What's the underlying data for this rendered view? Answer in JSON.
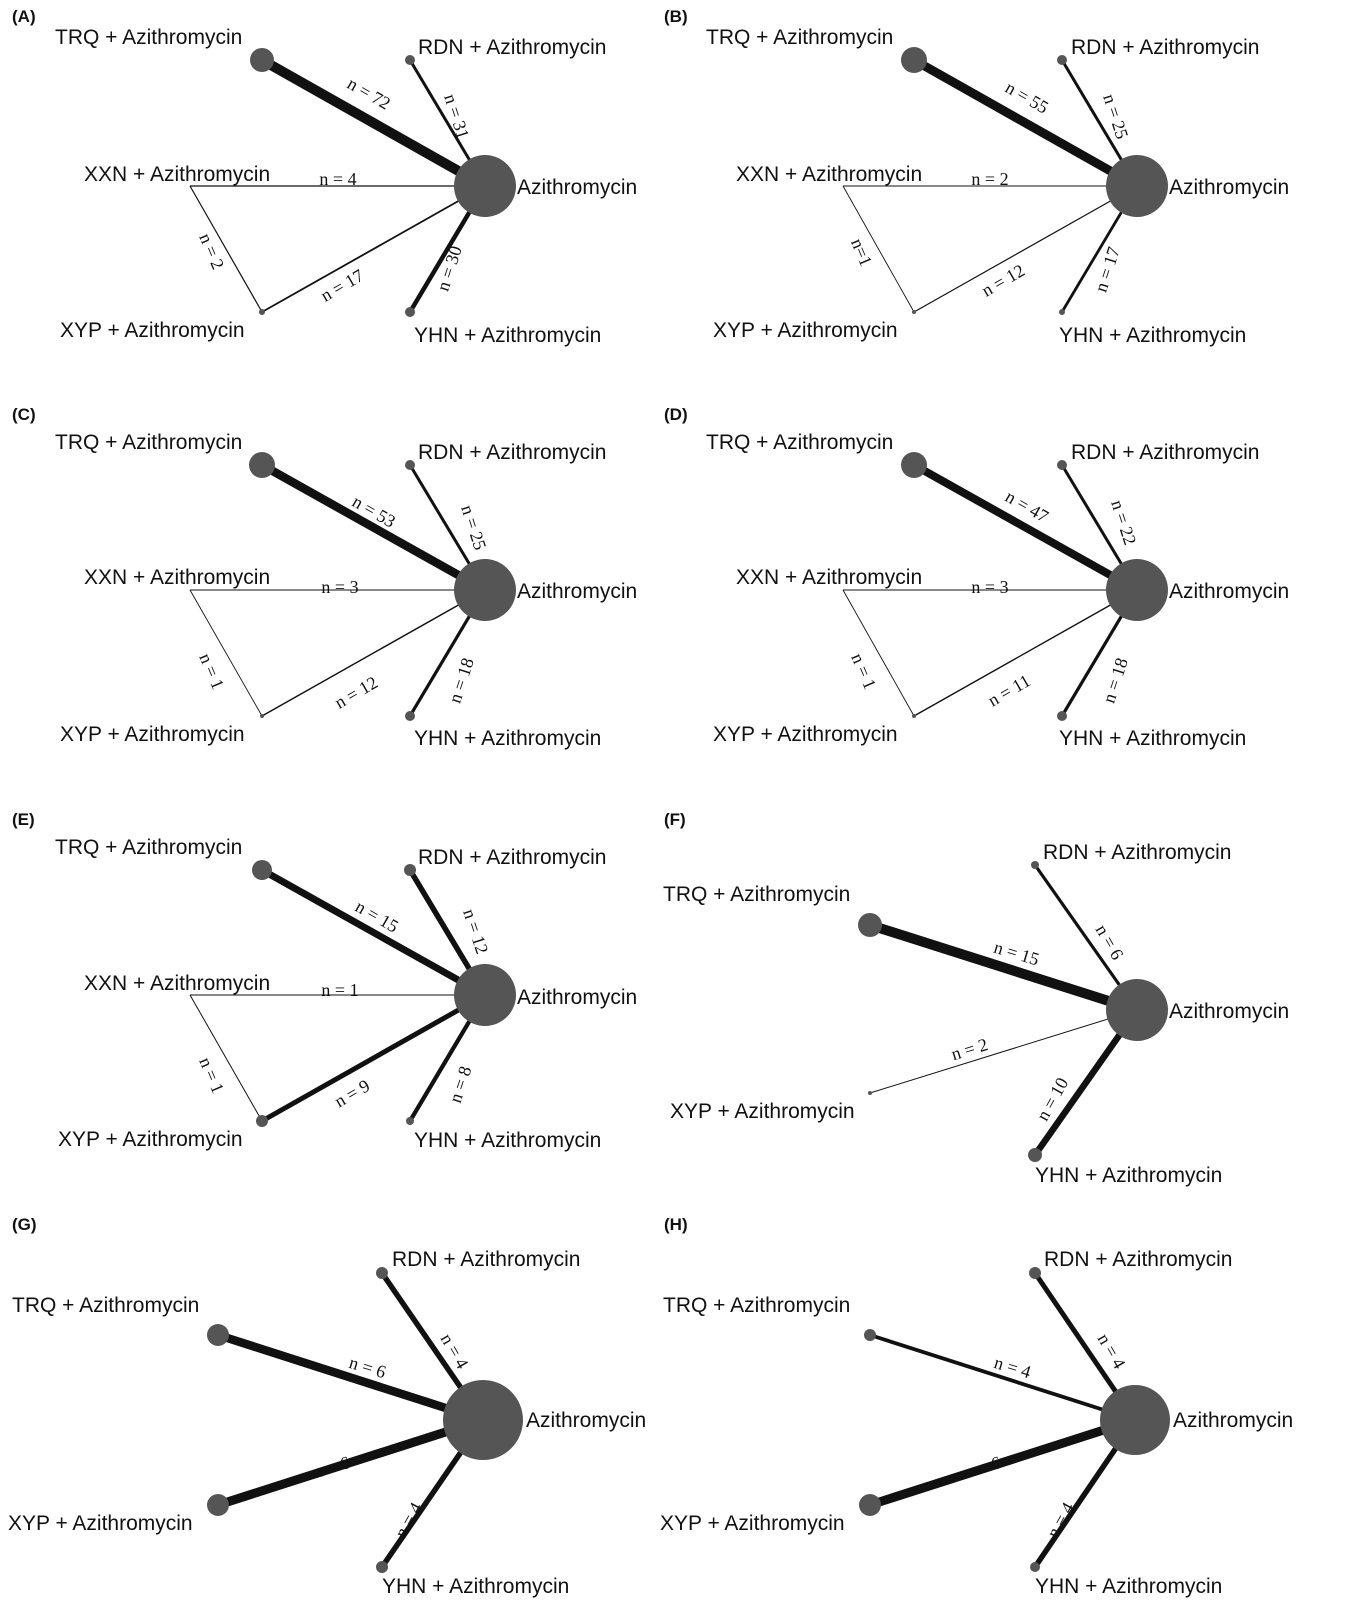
{
  "colors": {
    "node": "#555555",
    "edge": "#111111",
    "text": "#111111"
  },
  "panels": [
    {
      "letter": "(A)",
      "nodes": [
        {
          "id": "TRQ",
          "label": "TRQ + Azithromycin"
        },
        {
          "id": "RDN",
          "label": "RDN + Azithromycin"
        },
        {
          "id": "XXN",
          "label": "XXN + Azithromycin"
        },
        {
          "id": "AZI",
          "label": "Azithromycin"
        },
        {
          "id": "XYP",
          "label": "XYP + Azithromycin"
        },
        {
          "id": "YHN",
          "label": "YHN + Azithromycin"
        }
      ],
      "edges": [
        {
          "from": "TRQ",
          "to": "AZI",
          "label": "n = 72",
          "n": 72
        },
        {
          "from": "RDN",
          "to": "AZI",
          "label": "n = 31",
          "n": 31
        },
        {
          "from": "XXN",
          "to": "AZI",
          "label": "n = 4",
          "n": 4
        },
        {
          "from": "XXN",
          "to": "XYP",
          "label": "n = 2",
          "n": 2
        },
        {
          "from": "XYP",
          "to": "AZI",
          "label": "n = 17",
          "n": 17
        },
        {
          "from": "YHN",
          "to": "AZI",
          "label": "n = 30",
          "n": 30
        }
      ]
    },
    {
      "letter": "(B)",
      "nodes": [
        {
          "id": "TRQ",
          "label": "TRQ + Azithromycin"
        },
        {
          "id": "RDN",
          "label": "RDN + Azithromycin"
        },
        {
          "id": "XXN",
          "label": "XXN + Azithromycin"
        },
        {
          "id": "AZI",
          "label": "Azithromycin"
        },
        {
          "id": "XYP",
          "label": "XYP + Azithromycin"
        },
        {
          "id": "YHN",
          "label": "YHN + Azithromycin"
        }
      ],
      "edges": [
        {
          "from": "TRQ",
          "to": "AZI",
          "label": "n = 55",
          "n": 55
        },
        {
          "from": "RDN",
          "to": "AZI",
          "label": "n = 25",
          "n": 25
        },
        {
          "from": "XXN",
          "to": "AZI",
          "label": "n = 2",
          "n": 2
        },
        {
          "from": "XXN",
          "to": "XYP",
          "label": "n=1",
          "n": 1
        },
        {
          "from": "XYP",
          "to": "AZI",
          "label": "n = 12",
          "n": 12
        },
        {
          "from": "YHN",
          "to": "AZI",
          "label": "n = 17",
          "n": 17
        }
      ]
    },
    {
      "letter": "(C)",
      "nodes": [
        {
          "id": "TRQ",
          "label": "TRQ + Azithromycin"
        },
        {
          "id": "RDN",
          "label": "RDN + Azithromycin"
        },
        {
          "id": "XXN",
          "label": "XXN + Azithromycin"
        },
        {
          "id": "AZI",
          "label": "Azithromycin"
        },
        {
          "id": "XYP",
          "label": "XYP + Azithromycin"
        },
        {
          "id": "YHN",
          "label": "YHN + Azithromycin"
        }
      ],
      "edges": [
        {
          "from": "TRQ",
          "to": "AZI",
          "label": "n = 53",
          "n": 53
        },
        {
          "from": "RDN",
          "to": "AZI",
          "label": "n = 25",
          "n": 25
        },
        {
          "from": "XXN",
          "to": "AZI",
          "label": "n = 3",
          "n": 3
        },
        {
          "from": "XXN",
          "to": "XYP",
          "label": "n = 1",
          "n": 1
        },
        {
          "from": "XYP",
          "to": "AZI",
          "label": "n = 12",
          "n": 12
        },
        {
          "from": "YHN",
          "to": "AZI",
          "label": "n = 18",
          "n": 18
        }
      ]
    },
    {
      "letter": "(D)",
      "nodes": [
        {
          "id": "TRQ",
          "label": "TRQ + Azithromycin"
        },
        {
          "id": "RDN",
          "label": "RDN + Azithromycin"
        },
        {
          "id": "XXN",
          "label": "XXN + Azithromycin"
        },
        {
          "id": "AZI",
          "label": "Azithromycin"
        },
        {
          "id": "XYP",
          "label": "XYP + Azithromycin"
        },
        {
          "id": "YHN",
          "label": "YHN + Azithromycin"
        }
      ],
      "edges": [
        {
          "from": "TRQ",
          "to": "AZI",
          "label": "n = 47",
          "n": 47
        },
        {
          "from": "RDN",
          "to": "AZI",
          "label": "n = 22",
          "n": 22
        },
        {
          "from": "XXN",
          "to": "AZI",
          "label": "n = 3",
          "n": 3
        },
        {
          "from": "XXN",
          "to": "XYP",
          "label": "n = 1",
          "n": 1
        },
        {
          "from": "XYP",
          "to": "AZI",
          "label": "n = 11",
          "n": 11
        },
        {
          "from": "YHN",
          "to": "AZI",
          "label": "n = 18",
          "n": 18
        }
      ]
    },
    {
      "letter": "(E)",
      "nodes": [
        {
          "id": "TRQ",
          "label": "TRQ + Azithromycin"
        },
        {
          "id": "RDN",
          "label": "RDN + Azithromycin"
        },
        {
          "id": "XXN",
          "label": "XXN + Azithromycin"
        },
        {
          "id": "AZI",
          "label": "Azithromycin"
        },
        {
          "id": "XYP",
          "label": "XYP + Azithromycin"
        },
        {
          "id": "YHN",
          "label": "YHN + Azithromycin"
        }
      ],
      "edges": [
        {
          "from": "TRQ",
          "to": "AZI",
          "label": "n = 15",
          "n": 15
        },
        {
          "from": "RDN",
          "to": "AZI",
          "label": "n = 12",
          "n": 12
        },
        {
          "from": "XXN",
          "to": "AZI",
          "label": "n = 1",
          "n": 1
        },
        {
          "from": "XXN",
          "to": "XYP",
          "label": "n = 1",
          "n": 1
        },
        {
          "from": "XYP",
          "to": "AZI",
          "label": "n = 9",
          "n": 9
        },
        {
          "from": "YHN",
          "to": "AZI",
          "label": "n = 8",
          "n": 8
        }
      ]
    },
    {
      "letter": "(F)",
      "nodes": [
        {
          "id": "RDN",
          "label": "RDN + Azithromycin"
        },
        {
          "id": "TRQ",
          "label": "TRQ + Azithromycin"
        },
        {
          "id": "AZI",
          "label": "Azithromycin"
        },
        {
          "id": "XYP",
          "label": "XYP + Azithromycin"
        },
        {
          "id": "YHN",
          "label": "YHN + Azithromycin"
        }
      ],
      "edges": [
        {
          "from": "TRQ",
          "to": "AZI",
          "label": "n = 15",
          "n": 15
        },
        {
          "from": "RDN",
          "to": "AZI",
          "label": "n = 6",
          "n": 6
        },
        {
          "from": "XYP",
          "to": "AZI",
          "label": "n = 2",
          "n": 2
        },
        {
          "from": "YHN",
          "to": "AZI",
          "label": "n = 10",
          "n": 10
        }
      ]
    },
    {
      "letter": "(G)",
      "nodes": [
        {
          "id": "RDN",
          "label": "RDN + Azithromycin"
        },
        {
          "id": "TRQ",
          "label": "TRQ + Azithromycin"
        },
        {
          "id": "AZI",
          "label": "Azithromycin"
        },
        {
          "id": "XYP",
          "label": "XYP + Azithromycin"
        },
        {
          "id": "YHN",
          "label": "YHN + Azithromycin"
        }
      ],
      "edges": [
        {
          "from": "TRQ",
          "to": "AZI",
          "label": "n = 6",
          "n": 6
        },
        {
          "from": "RDN",
          "to": "AZI",
          "label": "n = 4",
          "n": 4
        },
        {
          "from": "XYP",
          "to": "AZI",
          "label": "n = 6",
          "n": 6
        },
        {
          "from": "YHN",
          "to": "AZI",
          "label": "n = 4",
          "n": 4
        }
      ]
    },
    {
      "letter": "(H)",
      "nodes": [
        {
          "id": "RDN",
          "label": "RDN + Azithromycin"
        },
        {
          "id": "TRQ",
          "label": "TRQ + Azithromycin"
        },
        {
          "id": "AZI",
          "label": "Azithromycin"
        },
        {
          "id": "XYP",
          "label": "XYP + Azithromycin"
        },
        {
          "id": "YHN",
          "label": "YHN + Azithromycin"
        }
      ],
      "edges": [
        {
          "from": "TRQ",
          "to": "AZI",
          "label": "n = 4",
          "n": 4
        },
        {
          "from": "RDN",
          "to": "AZI",
          "label": "n = 4",
          "n": 4
        },
        {
          "from": "XYP",
          "to": "AZI",
          "label": "n = 6",
          "n": 6
        },
        {
          "from": "YHN",
          "to": "AZI",
          "label": "n = 4",
          "n": 4
        }
      ]
    }
  ]
}
